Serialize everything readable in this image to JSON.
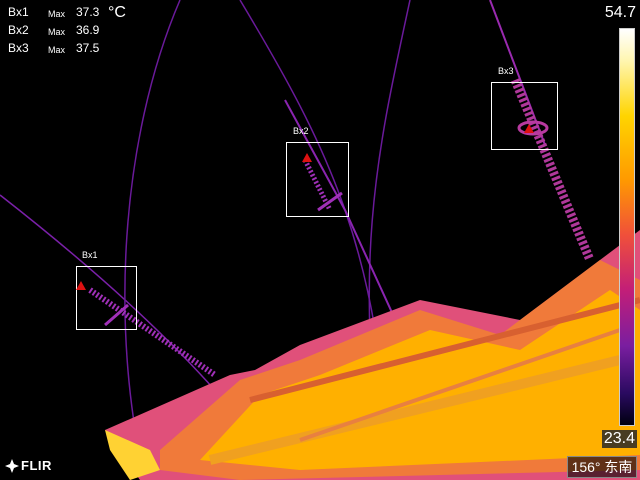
{
  "measurements": [
    {
      "label": "Bx1",
      "type": "Max",
      "value": "37.3"
    },
    {
      "label": "Bx2",
      "type": "Max",
      "value": "36.9"
    },
    {
      "label": "Bx3",
      "type": "Max",
      "value": "37.5"
    }
  ],
  "unit": "°C",
  "boxes": [
    {
      "label": "Bx1"
    },
    {
      "label": "Bx2"
    },
    {
      "label": "Bx3"
    }
  ],
  "scale": {
    "max": "54.7",
    "min": "23.4"
  },
  "brand": {
    "name": "FLIR"
  },
  "compass": {
    "text": "156° 东南"
  },
  "colors": {
    "marker": "#dd1111",
    "box_outline": "#ffffff"
  },
  "icons": {
    "logo": "flir-logo-icon",
    "marker": "hotspot-marker-icon"
  }
}
